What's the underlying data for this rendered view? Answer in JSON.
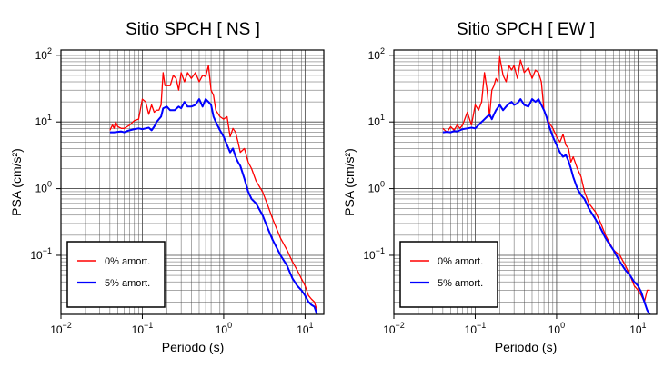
{
  "chart_data": [
    {
      "type": "line",
      "title": "Sitio SPCH [ NS ]",
      "xlabel": "Periodo (s)",
      "ylabel": "PSA (cm/s²)",
      "xscale": "log",
      "yscale": "log",
      "xlim": [
        0.01,
        17
      ],
      "ylim": [
        0.013,
        120
      ],
      "xticks": [
        {
          "value": 0.01,
          "base": "10",
          "exp": "−2"
        },
        {
          "value": 0.1,
          "base": "10",
          "exp": "−1"
        },
        {
          "value": 1,
          "base": "10",
          "exp": "0"
        },
        {
          "value": 10,
          "base": "10",
          "exp": "1"
        }
      ],
      "yticks": [
        {
          "value": 0.1,
          "base": "10",
          "exp": "−1"
        },
        {
          "value": 1,
          "base": "10",
          "exp": "0"
        },
        {
          "value": 10,
          "base": "10",
          "exp": "1"
        },
        {
          "value": 100,
          "base": "10",
          "exp": "2"
        }
      ],
      "grid": true,
      "legend_position": "bottom-left",
      "series": [
        {
          "name": "0% amort.",
          "color": "#ff0000",
          "x": [
            0.04,
            0.043,
            0.045,
            0.047,
            0.05,
            0.055,
            0.06,
            0.065,
            0.07,
            0.08,
            0.09,
            0.1,
            0.11,
            0.12,
            0.13,
            0.14,
            0.15,
            0.16,
            0.17,
            0.18,
            0.19,
            0.2,
            0.22,
            0.24,
            0.26,
            0.28,
            0.3,
            0.33,
            0.36,
            0.4,
            0.45,
            0.5,
            0.55,
            0.6,
            0.65,
            0.7,
            0.75,
            0.8,
            0.9,
            1.0,
            1.1,
            1.2,
            1.3,
            1.4,
            1.5,
            1.6,
            1.8,
            2.0,
            2.2,
            2.5,
            3.0,
            3.5,
            4.0,
            5.0,
            6.0,
            7.0,
            8.0,
            9.0,
            10.0,
            11.0,
            12.0,
            13.0,
            14.0
          ],
          "y": [
            7.5,
            9.0,
            8.0,
            10.0,
            8.5,
            8.0,
            8.0,
            8.5,
            9.0,
            10.5,
            11.0,
            22.0,
            20.0,
            13.0,
            18.0,
            14.0,
            15.0,
            15.0,
            18.0,
            55.0,
            35.0,
            35.0,
            35.0,
            50.0,
            45.0,
            30.0,
            55.0,
            40.0,
            55.0,
            45.0,
            55.0,
            40.0,
            50.0,
            48.0,
            70.0,
            30.0,
            25.0,
            15.0,
            12.0,
            11.0,
            12.0,
            6.0,
            8.0,
            7.0,
            5.0,
            3.5,
            4.0,
            2.5,
            2.0,
            1.3,
            0.9,
            0.55,
            0.35,
            0.18,
            0.12,
            0.08,
            0.06,
            0.045,
            0.035,
            0.025,
            0.022,
            0.02,
            0.015
          ]
        },
        {
          "name": "5% amort.",
          "color": "#0000ff",
          "x": [
            0.04,
            0.045,
            0.05,
            0.055,
            0.06,
            0.065,
            0.07,
            0.08,
            0.09,
            0.1,
            0.11,
            0.12,
            0.13,
            0.14,
            0.15,
            0.16,
            0.17,
            0.18,
            0.2,
            0.22,
            0.25,
            0.28,
            0.3,
            0.33,
            0.36,
            0.4,
            0.45,
            0.5,
            0.55,
            0.6,
            0.65,
            0.7,
            0.75,
            0.8,
            0.9,
            1.0,
            1.1,
            1.2,
            1.3,
            1.4,
            1.5,
            1.6,
            1.8,
            2.0,
            2.2,
            2.5,
            3.0,
            3.5,
            4.0,
            5.0,
            6.0,
            7.0,
            8.0,
            9.0,
            10.0,
            11.0,
            12.0,
            13.0,
            14.0
          ],
          "y": [
            7.0,
            7.0,
            7.1,
            7.2,
            7.0,
            7.3,
            7.5,
            7.8,
            8.0,
            7.8,
            8.0,
            8.2,
            7.5,
            8.5,
            10.0,
            11.0,
            12.0,
            16.0,
            17.0,
            15.0,
            15.0,
            17.0,
            16.0,
            20.0,
            17.0,
            17.0,
            18.0,
            22.0,
            17.0,
            22.0,
            20.0,
            18.0,
            12.0,
            10.0,
            7.5,
            6.0,
            4.5,
            3.5,
            4.0,
            3.0,
            2.5,
            2.2,
            1.4,
            0.9,
            0.7,
            0.6,
            0.4,
            0.25,
            0.17,
            0.1,
            0.07,
            0.045,
            0.035,
            0.03,
            0.025,
            0.02,
            0.018,
            0.017,
            0.013
          ]
        }
      ]
    },
    {
      "type": "line",
      "title": "Sitio SPCH [ EW ]",
      "xlabel": "Periodo (s)",
      "ylabel": "PSA (cm/s²)",
      "xscale": "log",
      "yscale": "log",
      "xlim": [
        0.01,
        17
      ],
      "ylim": [
        0.013,
        120
      ],
      "xticks": [
        {
          "value": 0.01,
          "base": "10",
          "exp": "−2"
        },
        {
          "value": 0.1,
          "base": "10",
          "exp": "−1"
        },
        {
          "value": 1,
          "base": "10",
          "exp": "0"
        },
        {
          "value": 10,
          "base": "10",
          "exp": "1"
        }
      ],
      "yticks": [
        {
          "value": 0.1,
          "base": "10",
          "exp": "−1"
        },
        {
          "value": 1,
          "base": "10",
          "exp": "0"
        },
        {
          "value": 10,
          "base": "10",
          "exp": "1"
        },
        {
          "value": 100,
          "base": "10",
          "exp": "2"
        }
      ],
      "grid": true,
      "legend_position": "bottom-left",
      "series": [
        {
          "name": "0% amort.",
          "color": "#ff0000",
          "x": [
            0.04,
            0.045,
            0.05,
            0.055,
            0.06,
            0.065,
            0.07,
            0.08,
            0.09,
            0.1,
            0.11,
            0.12,
            0.13,
            0.14,
            0.15,
            0.16,
            0.17,
            0.18,
            0.19,
            0.2,
            0.22,
            0.24,
            0.26,
            0.28,
            0.3,
            0.33,
            0.36,
            0.4,
            0.45,
            0.5,
            0.55,
            0.6,
            0.65,
            0.7,
            0.8,
            0.9,
            1.0,
            1.1,
            1.2,
            1.3,
            1.4,
            1.5,
            1.6,
            1.8,
            2.0,
            2.2,
            2.5,
            3.0,
            3.5,
            4.0,
            5.0,
            6.0,
            7.0,
            8.0,
            9.0,
            10.0,
            11.0,
            12.0,
            13.0,
            14.0
          ],
          "y": [
            8.0,
            7.0,
            8.5,
            7.5,
            9.0,
            8.0,
            9.0,
            14.0,
            9.0,
            18.0,
            15.0,
            20.0,
            55.0,
            30.0,
            12.0,
            30.0,
            35.0,
            45.0,
            40.0,
            95.0,
            50.0,
            40.0,
            70.0,
            60.0,
            70.0,
            45.0,
            85.0,
            55.0,
            65.0,
            45.0,
            60.0,
            55.0,
            40.0,
            15.0,
            10.0,
            8.0,
            6.0,
            5.0,
            6.5,
            4.5,
            4.0,
            2.5,
            3.0,
            2.0,
            1.5,
            0.9,
            0.6,
            0.45,
            0.3,
            0.2,
            0.12,
            0.1,
            0.07,
            0.05,
            0.035,
            0.03,
            0.025,
            0.02,
            0.03,
            0.03
          ]
        },
        {
          "name": "5% amort.",
          "color": "#0000ff",
          "x": [
            0.04,
            0.045,
            0.05,
            0.055,
            0.06,
            0.065,
            0.07,
            0.08,
            0.09,
            0.1,
            0.11,
            0.12,
            0.13,
            0.14,
            0.15,
            0.16,
            0.17,
            0.18,
            0.2,
            0.22,
            0.25,
            0.28,
            0.3,
            0.33,
            0.36,
            0.4,
            0.45,
            0.5,
            0.55,
            0.6,
            0.65,
            0.7,
            0.75,
            0.8,
            0.9,
            1.0,
            1.1,
            1.2,
            1.3,
            1.4,
            1.5,
            1.6,
            1.8,
            2.0,
            2.2,
            2.5,
            3.0,
            3.5,
            4.0,
            5.0,
            6.0,
            7.0,
            8.0,
            9.0,
            10.0,
            11.0,
            12.0,
            13.0,
            14.0
          ],
          "y": [
            7.0,
            7.1,
            7.0,
            7.3,
            7.2,
            7.5,
            7.8,
            8.0,
            8.2,
            8.0,
            9.0,
            10.0,
            11.0,
            12.0,
            13.0,
            11.0,
            13.0,
            15.0,
            18.0,
            15.0,
            18.0,
            20.0,
            18.0,
            19.0,
            22.0,
            18.0,
            17.0,
            22.0,
            20.0,
            22.0,
            18.0,
            15.0,
            12.0,
            9.0,
            6.0,
            4.5,
            3.5,
            3.0,
            3.2,
            2.6,
            2.0,
            1.5,
            1.0,
            0.8,
            0.7,
            0.5,
            0.35,
            0.25,
            0.18,
            0.12,
            0.08,
            0.06,
            0.05,
            0.04,
            0.035,
            0.028,
            0.02,
            0.015,
            0.013
          ]
        }
      ]
    }
  ]
}
